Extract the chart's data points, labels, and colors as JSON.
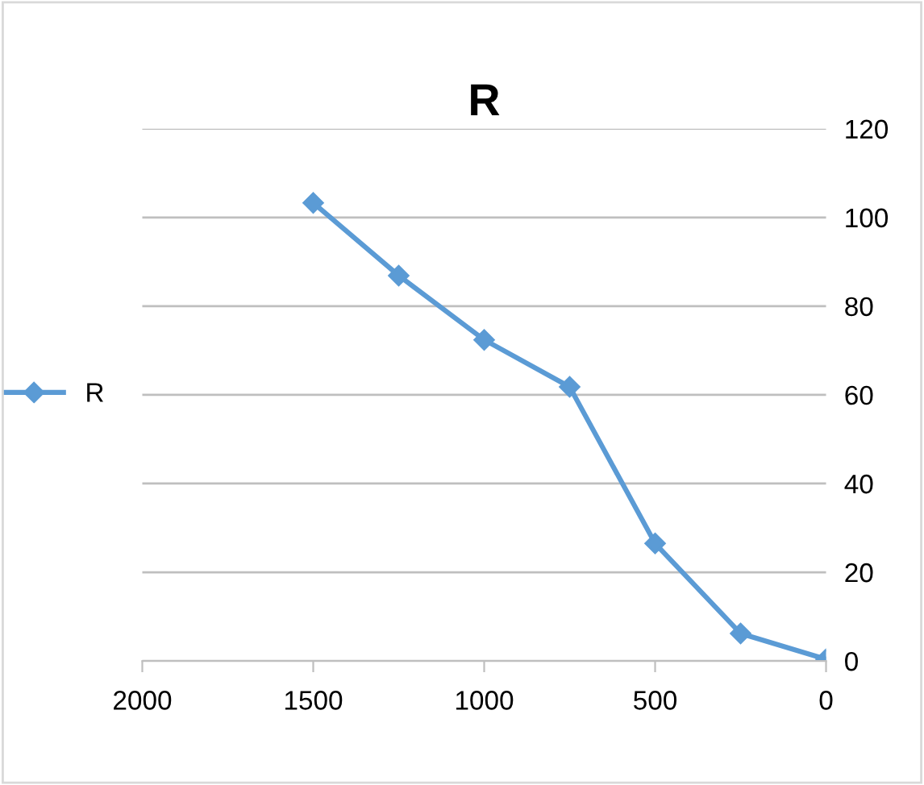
{
  "chart_data": {
    "type": "line",
    "title": "R",
    "x": [
      1500,
      1250,
      1000,
      750,
      500,
      250,
      0
    ],
    "series": [
      {
        "name": "R",
        "color": "#5b9bd5",
        "values": [
          103.3,
          86.9,
          72.4,
          61.8,
          26.5,
          6.2,
          0.4
        ]
      }
    ],
    "xlim": [
      2000,
      0
    ],
    "xticks": [
      2000,
      1500,
      1000,
      500,
      0
    ],
    "ylim": [
      0,
      120
    ],
    "yticks": [
      0,
      20,
      40,
      60,
      80,
      100,
      120
    ],
    "grid": "y",
    "legend": "left",
    "marker": "diamond",
    "line_style": "solid"
  }
}
